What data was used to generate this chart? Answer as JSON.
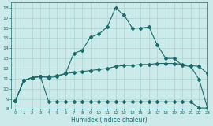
{
  "title": "",
  "xlabel": "Humidex (Indice chaleur)",
  "bg_color": "#cceaea",
  "line_color": "#1a6b6b",
  "grid_color": "#aad4d4",
  "xlim": [
    -0.5,
    23
  ],
  "ylim": [
    8,
    18.5
  ],
  "yticks": [
    8,
    9,
    10,
    11,
    12,
    13,
    14,
    15,
    16,
    17,
    18
  ],
  "xticks": [
    0,
    1,
    2,
    3,
    4,
    5,
    6,
    7,
    8,
    9,
    10,
    11,
    12,
    13,
    14,
    15,
    16,
    17,
    18,
    19,
    20,
    21,
    22,
    23
  ],
  "line1_x": [
    0,
    1,
    2,
    3,
    4,
    5,
    6,
    7,
    8,
    9,
    10,
    11,
    12,
    13,
    14,
    15,
    16,
    17,
    18,
    19,
    20,
    21,
    22,
    23
  ],
  "line1_y": [
    8.8,
    10.8,
    11.1,
    11.2,
    11.1,
    11.2,
    11.5,
    13.5,
    13.8,
    15.1,
    15.4,
    16.1,
    18.0,
    17.3,
    16.0,
    16.0,
    16.1,
    14.3,
    13.0,
    13.0,
    12.3,
    12.2,
    10.9,
    8.1
  ],
  "line2_x": [
    0,
    1,
    2,
    3,
    4,
    5,
    6,
    7,
    8,
    9,
    10,
    11,
    12,
    13,
    14,
    15,
    16,
    17,
    18,
    19,
    20,
    21,
    22,
    23
  ],
  "line2_y": [
    8.8,
    10.8,
    11.1,
    11.2,
    11.2,
    11.3,
    11.5,
    11.6,
    11.7,
    11.8,
    11.9,
    12.0,
    12.2,
    12.3,
    12.3,
    12.4,
    12.4,
    12.5,
    12.5,
    12.5,
    12.4,
    12.3,
    12.2,
    11.5
  ],
  "line3_x": [
    0,
    1,
    2,
    3,
    4,
    5,
    6,
    7,
    8,
    9,
    10,
    11,
    12,
    13,
    14,
    15,
    16,
    17,
    18,
    19,
    20,
    21,
    22,
    23
  ],
  "line3_y": [
    8.8,
    10.8,
    11.1,
    11.2,
    8.7,
    8.7,
    8.7,
    8.7,
    8.7,
    8.7,
    8.7,
    8.7,
    8.7,
    8.7,
    8.7,
    8.7,
    8.7,
    8.7,
    8.7,
    8.7,
    8.7,
    8.7,
    8.1,
    8.1
  ]
}
